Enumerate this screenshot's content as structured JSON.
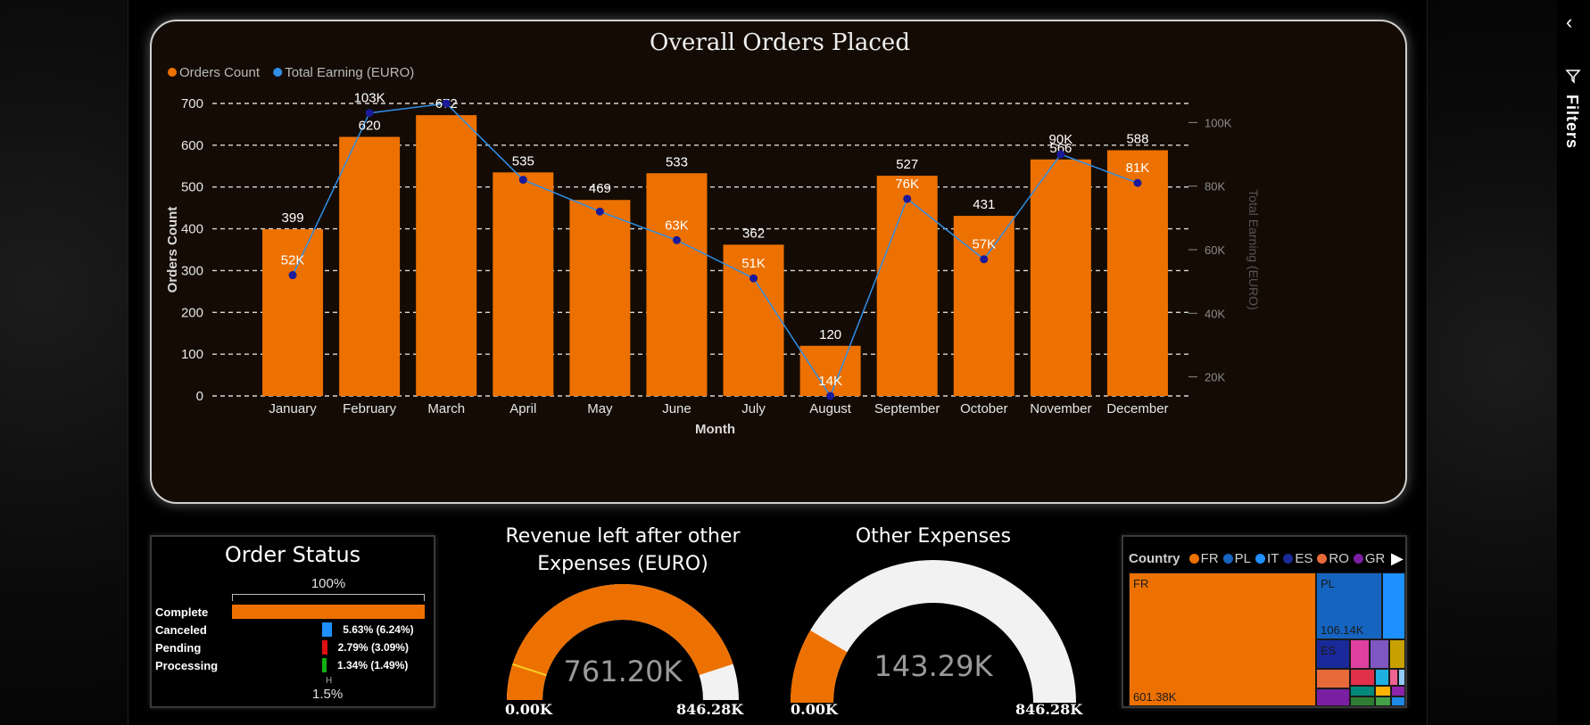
{
  "chart_data": {
    "type": "bar",
    "title": "Overall Orders Placed",
    "xlabel": "Month",
    "ylabel": "Orders Count",
    "ylabel_right": "Total Earning (EURO)",
    "categories": [
      "January",
      "February",
      "March",
      "April",
      "May",
      "June",
      "July",
      "August",
      "September",
      "October",
      "November",
      "December"
    ],
    "series": [
      {
        "name": "Orders Count",
        "kind": "bar",
        "axis": "left",
        "color": "#ed7100",
        "values": [
          399,
          620,
          672,
          535,
          469,
          533,
          362,
          120,
          527,
          431,
          566,
          588
        ],
        "labels": [
          "399",
          "620",
          "672",
          "535",
          "469",
          "533",
          "362",
          "120",
          "527",
          "431",
          "566",
          "588"
        ]
      },
      {
        "name": "Total Earning (EURO)",
        "kind": "line",
        "axis": "right",
        "color": "#2f8fe6",
        "marker_color": "#1a1a9a",
        "values": [
          52000,
          103000,
          106000,
          82000,
          72000,
          63000,
          51000,
          14000,
          76000,
          57000,
          90000,
          81000
        ],
        "labels": [
          "52K",
          "103K",
          "",
          "",
          "",
          "63K",
          "51K",
          "14K",
          "76K",
          "57K",
          "90K",
          "81K"
        ]
      }
    ],
    "ylim": [
      0,
      700
    ],
    "yticks": [
      0,
      100,
      200,
      300,
      400,
      500,
      600,
      700
    ],
    "ylim_right": [
      14000,
      106000
    ],
    "yticks_right": [
      20000,
      40000,
      60000,
      80000,
      100000
    ],
    "yticks_right_labels": [
      "20K",
      "40K",
      "60K",
      "80K",
      "100K"
    ],
    "grid": true,
    "legend_position": "top-left"
  },
  "order_status": {
    "title": "Order Status",
    "scale_label": "100%",
    "footer": "1.5%",
    "footer_tick": "H",
    "rows": [
      {
        "label": "Complete",
        "value_label": "",
        "percent": 100,
        "color": "#ed7100"
      },
      {
        "label": "Canceled",
        "value_label": "5.63% (6.24%)",
        "percent": 5.63,
        "color": "#1e90ff"
      },
      {
        "label": "Pending",
        "value_label": "2.79% (3.09%)",
        "percent": 2.79,
        "color": "#e01010"
      },
      {
        "label": "Processing",
        "value_label": "1.34% (1.49%)",
        "percent": 1.34,
        "color": "#10b010"
      }
    ]
  },
  "revenue_gauge": {
    "title": "Revenue left after other Expenses (EURO)",
    "value_label": "761.20K",
    "value": 761.2,
    "min_label": "0.00K",
    "max_label": "846.28K",
    "max": 846.28,
    "fill_color": "#ed7100",
    "track_color": "#f2f2f2"
  },
  "expenses_gauge": {
    "title": "Other Expenses",
    "value_label": "143.29K",
    "value": 143.29,
    "min_label": "0.00K",
    "max_label": "846.28K",
    "max": 846.28,
    "fill_color": "#ed7100",
    "track_color": "#f2f2f2"
  },
  "country_treemap": {
    "legend_title": "Country",
    "legend": [
      {
        "code": "FR",
        "color": "#ed7100"
      },
      {
        "code": "PL",
        "color": "#1565c0"
      },
      {
        "code": "IT",
        "color": "#1e90ff"
      },
      {
        "code": "ES",
        "color": "#1a2a9a"
      },
      {
        "code": "RO",
        "color": "#e86a3a"
      },
      {
        "code": "GR",
        "color": "#7b1fa2"
      }
    ],
    "cells": [
      {
        "code": "FR",
        "value_label": "601.38K"
      },
      {
        "code": "PL",
        "value_label": "106.14K"
      },
      {
        "code": "ES",
        "value_label": ""
      }
    ]
  },
  "filters_pane": {
    "label": "Filters"
  }
}
